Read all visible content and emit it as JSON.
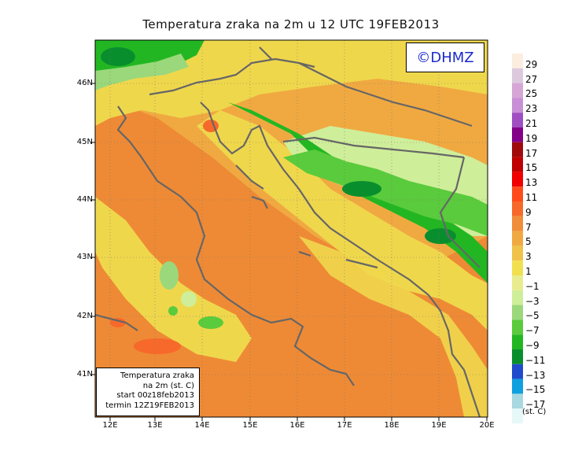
{
  "title": "Temperatura zraka na 2m u 12 UTC 19FEB2013",
  "logo": "©DHMZ",
  "infobox": {
    "line1": "Temperatura zraka",
    "line2": "na 2m (st. C)",
    "line3": "start 00z18feb2013",
    "line4": "termin 12Z19FEB2013"
  },
  "lat_ticks": [
    "46N",
    "45N",
    "44N",
    "43N",
    "42N",
    "41N"
  ],
  "lon_ticks": [
    "12E",
    "13E",
    "14E",
    "15E",
    "16E",
    "17E",
    "18E",
    "19E",
    "20E"
  ],
  "colorbar": {
    "unit": "(st. C)",
    "labels": [
      "29",
      "27",
      "25",
      "23",
      "21",
      "19",
      "17",
      "15",
      "13",
      "11",
      "9",
      "7",
      "5",
      "3",
      "1",
      "−1",
      "−3",
      "−5",
      "−7",
      "−9",
      "−11",
      "−13",
      "−15",
      "−17"
    ],
    "colors": [
      "#fbeee0",
      "#ddc9de",
      "#d5a6d6",
      "#c98fd6",
      "#a04fc2",
      "#850088",
      "#a00a0a",
      "#c00000",
      "#f00000",
      "#ff4b1b",
      "#f7692a",
      "#f08d3a",
      "#f0a941",
      "#f0c24a",
      "#f0e050",
      "#e9ec8e",
      "#cfee9a",
      "#9ad87b",
      "#5acb3c",
      "#22b722",
      "#098e2e",
      "#1f4ccc",
      "#0fa0e0",
      "#a8d8e0",
      "#e6f8f8"
    ]
  },
  "map": {
    "lon_range": [
      11.7,
      20.0
    ],
    "lat_range": [
      40.2,
      46.75
    ],
    "dominant_colors": {
      "sea_warm": "#ee8a35",
      "coast_yellow": "#efd74c",
      "inland_cold_green": "#22b722",
      "mild": "#f2b04a"
    }
  }
}
